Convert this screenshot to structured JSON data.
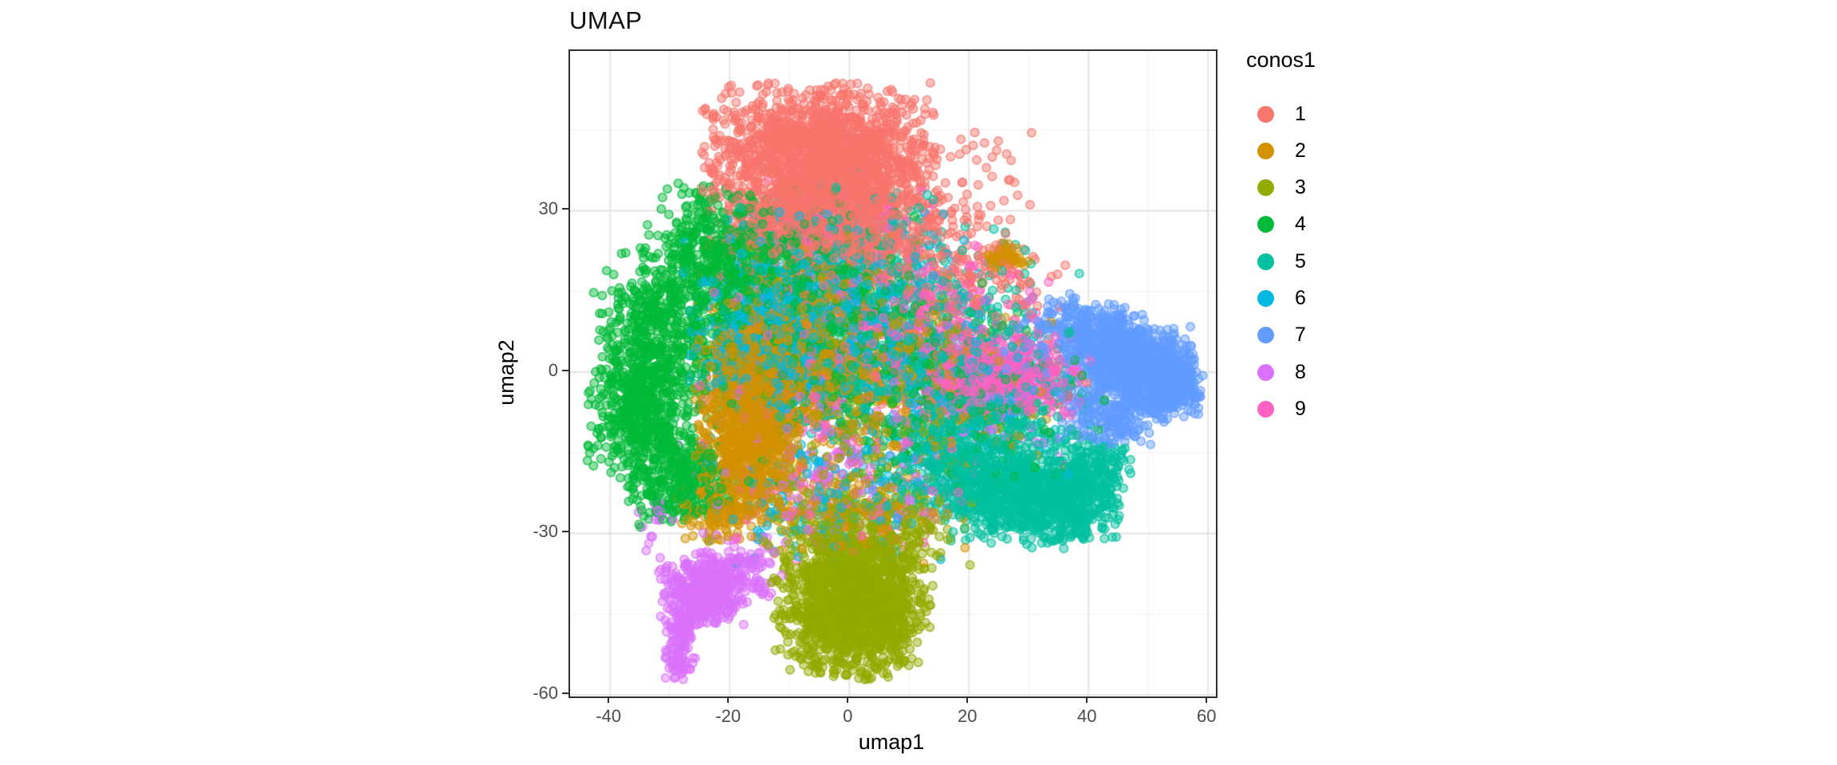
{
  "chart_data": {
    "type": "scatter",
    "title": "UMAP",
    "xlabel": "umap1",
    "ylabel": "umap2",
    "legend_title": "conos1",
    "xlim": [
      -46.7,
      61.3
    ],
    "ylim": [
      -60.3,
      59.7
    ],
    "x_ticks": [
      {
        "label": "-40",
        "value": -40
      },
      {
        "label": "-20",
        "value": -20
      },
      {
        "label": "0",
        "value": 0
      },
      {
        "label": "20",
        "value": 20
      },
      {
        "label": "40",
        "value": 40
      },
      {
        "label": "60",
        "value": 60
      }
    ],
    "y_ticks": [
      {
        "label": "30",
        "value": 30
      },
      {
        "label": "0",
        "value": 0
      },
      {
        "label": "-30",
        "value": -30
      },
      {
        "label": "-60",
        "value": -60
      }
    ],
    "x_minor_ticks": [
      -30,
      -10,
      10,
      30,
      50
    ],
    "y_minor_ticks": [
      45,
      15,
      -15,
      -45
    ],
    "grid": true,
    "legend_position": "right",
    "point_radius_px": 5.2,
    "point_fill_alpha": 0.45,
    "point_stroke_alpha": 0.8,
    "series": [
      {
        "name": "1",
        "color": "#F8766D",
        "blobs": [
          [
            -5,
            38.5,
            9,
            7,
            2000
          ],
          [
            -2,
            25,
            11,
            4,
            420
          ],
          [
            5,
            33,
            12,
            8,
            250
          ],
          [
            22,
            17,
            7,
            5,
            110
          ],
          [
            10,
            5,
            14,
            8,
            120
          ]
        ]
      },
      {
        "name": "2",
        "color": "#D39200",
        "blobs": [
          [
            -16.5,
            -11,
            4.2,
            8,
            950
          ],
          [
            -13,
            2,
            6,
            6,
            380
          ],
          [
            -5,
            10,
            10,
            8,
            280
          ],
          [
            5,
            -5,
            14,
            9,
            330
          ],
          [
            26.5,
            21.5,
            1.7,
            1.2,
            55
          ],
          [
            -22,
            -24,
            3.5,
            3.5,
            150
          ],
          [
            0,
            -27,
            9,
            4,
            120
          ]
        ]
      },
      {
        "name": "3",
        "color": "#93AA00",
        "blobs": [
          [
            0.5,
            -43,
            6.2,
            6.5,
            1500
          ],
          [
            3,
            -29,
            8,
            4,
            260
          ],
          [
            6,
            -8,
            12,
            9,
            130
          ]
        ]
      },
      {
        "name": "4",
        "color": "#00BA38",
        "blobs": [
          [
            -23,
            22,
            5,
            6,
            340
          ],
          [
            -32,
            8,
            5,
            7,
            470
          ],
          [
            -35,
            -7,
            4,
            6,
            460
          ],
          [
            -29,
            -19,
            4.5,
            5,
            330
          ],
          [
            -10,
            18,
            10,
            8,
            520
          ],
          [
            0,
            0,
            13,
            10,
            420
          ],
          [
            22,
            -6,
            10,
            8,
            130
          ]
        ]
      },
      {
        "name": "5",
        "color": "#00C19F",
        "blobs": [
          [
            18,
            -17,
            5.5,
            5,
            420
          ],
          [
            28,
            -23,
            5,
            4.5,
            520
          ],
          [
            36,
            -24,
            4.5,
            3.8,
            420
          ],
          [
            41,
            -18,
            3,
            3,
            150
          ],
          [
            10,
            6,
            13,
            11,
            520
          ],
          [
            0,
            25,
            9,
            6,
            100
          ],
          [
            25,
            -8,
            7,
            5,
            200
          ]
        ]
      },
      {
        "name": "6",
        "color": "#00B9E3",
        "blobs": [
          [
            -14,
            6,
            6,
            7,
            470
          ],
          [
            -2,
            12,
            12,
            9,
            420
          ],
          [
            15,
            -3,
            12,
            8,
            230
          ],
          [
            -4,
            -24,
            9,
            6,
            180
          ]
        ]
      },
      {
        "name": "7",
        "color": "#619CFF",
        "blobs": [
          [
            43,
            5,
            3.5,
            3.5,
            330
          ],
          [
            49,
            1,
            4,
            3.5,
            600
          ],
          [
            53.5,
            -3,
            2.6,
            2.6,
            280
          ],
          [
            44,
            -8,
            4,
            3,
            220
          ],
          [
            38,
            8,
            4,
            3,
            130
          ],
          [
            30,
            3,
            6,
            5,
            70
          ]
        ]
      },
      {
        "name": "8",
        "color": "#DB72FB",
        "blobs": [
          [
            -24.5,
            -41,
            3.4,
            3,
            400
          ],
          [
            -19.5,
            -36.5,
            4,
            3,
            140
          ],
          [
            -28,
            -48,
            1.2,
            2.2,
            65
          ],
          [
            -28.5,
            -54,
            1.3,
            1.6,
            55
          ],
          [
            -33,
            -28,
            2,
            3,
            18
          ],
          [
            -5,
            -16,
            11,
            8,
            130
          ],
          [
            24,
            -7,
            8,
            5,
            60
          ]
        ]
      },
      {
        "name": "9",
        "color": "#FF61C3",
        "blobs": [
          [
            26,
            -1,
            6.5,
            3.5,
            480
          ],
          [
            14,
            9,
            9,
            7,
            260
          ],
          [
            0,
            3,
            13,
            10,
            240
          ],
          [
            -4,
            27,
            9,
            5,
            70
          ],
          [
            0,
            -25,
            10,
            5,
            100
          ]
        ]
      }
    ],
    "grid_major_color": "#E3E3E3",
    "grid_minor_color": "#F2F2F2"
  }
}
